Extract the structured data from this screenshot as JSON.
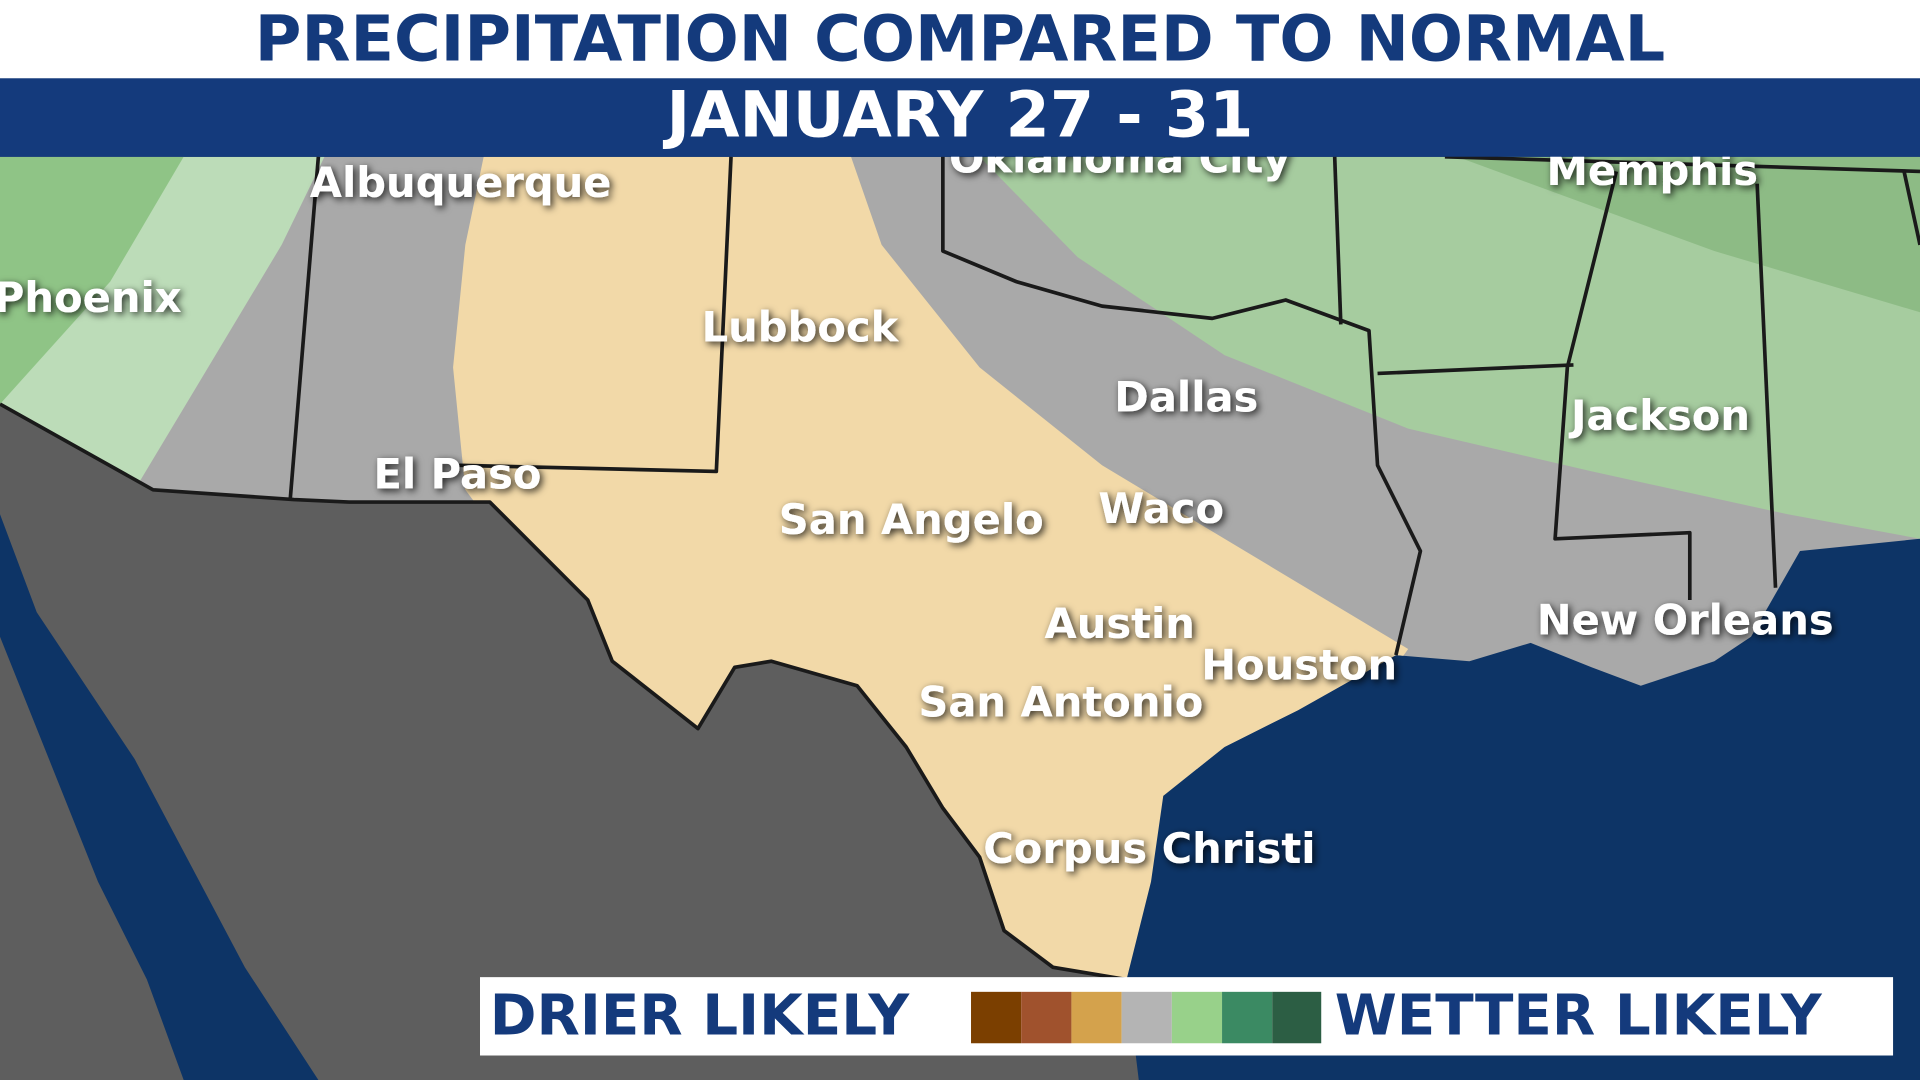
{
  "header": {
    "title": "PRECIPITATION COMPARED TO NORMAL",
    "subtitle": "JANUARY 27 - 31"
  },
  "cities": [
    "Albuquerque",
    "Phoenix",
    "Lubbock",
    "Oklahoma City",
    "Memphis",
    "Dallas",
    "Jackson",
    "El Paso",
    "San Angelo",
    "Waco",
    "Austin",
    "Houston",
    "New Orleans",
    "San Antonio",
    "Corpus Christi"
  ],
  "legend": {
    "left": "DRIER LIKELY",
    "right": "WETTER LIKELY"
  }
}
